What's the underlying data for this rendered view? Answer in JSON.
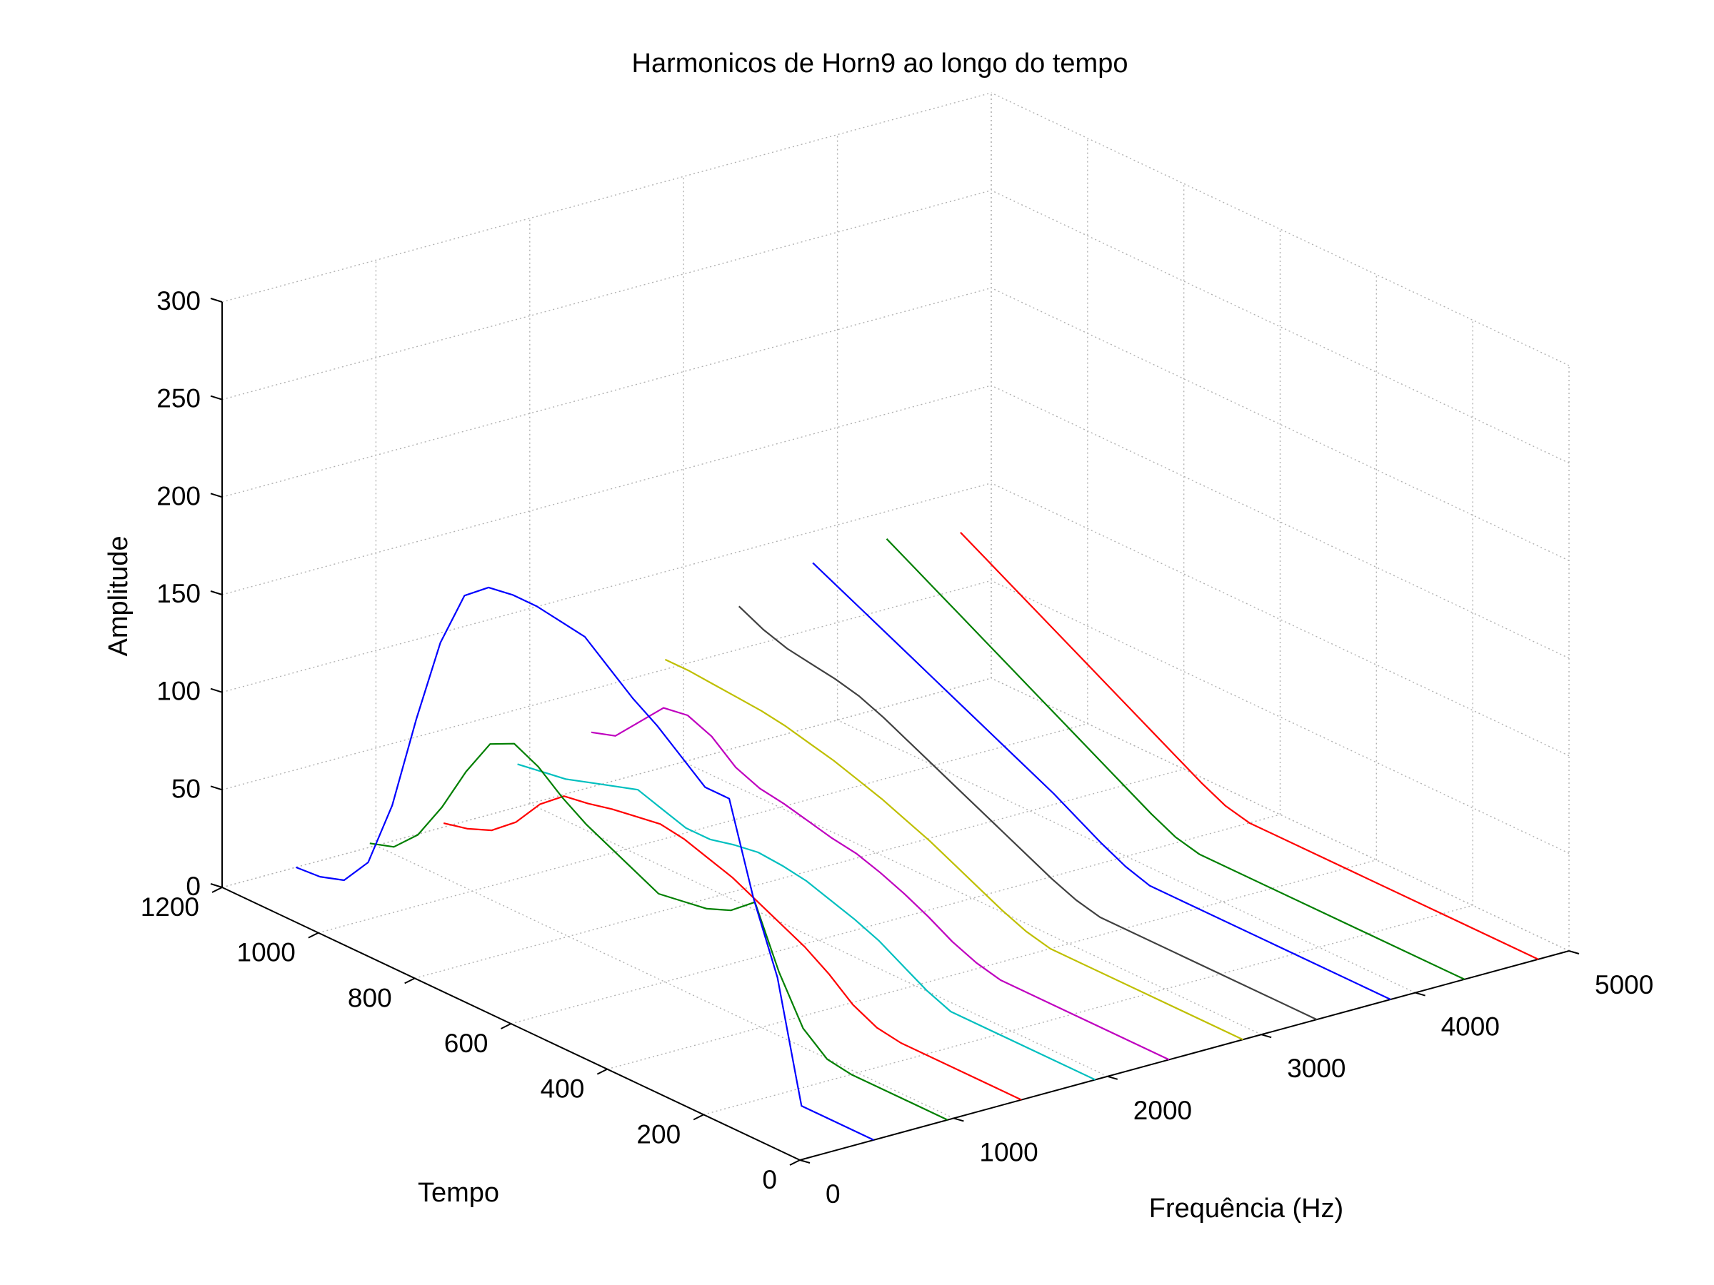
{
  "chart_data": {
    "type": "line",
    "projection": "3d",
    "title": "Harmonicos de Horn9 ao longo do tempo",
    "xlabel": "Frequência (Hz)",
    "ylabel": "Tempo",
    "zlabel": "Amplitude",
    "xlim": [
      0,
      5000
    ],
    "ylim": [
      0,
      1200
    ],
    "zlim": [
      0,
      300
    ],
    "x_ticks": [
      "0",
      "1000",
      "2000",
      "3000",
      "4000",
      "5000"
    ],
    "y_ticks": [
      "0",
      "200",
      "400",
      "600",
      "800",
      "1000",
      "1200"
    ],
    "z_ticks": [
      "0",
      "50",
      "100",
      "150",
      "200",
      "250",
      "300"
    ],
    "grid": true,
    "series": [
      {
        "color": "#0000ff",
        "frequency": 480,
        "time": [
          0,
          150,
          160,
          200,
          250,
          300,
          350,
          400,
          450,
          500,
          550,
          600,
          650,
          700,
          750,
          800,
          850,
          900,
          950,
          1000,
          1050,
          1100,
          1150,
          1200
        ],
        "amplitude": [
          0,
          0,
          12,
          60,
          95,
          140,
          140,
          150,
          160,
          168,
          178,
          188,
          190,
          192,
          192,
          190,
          180,
          150,
          105,
          55,
          20,
          5,
          1,
          0
        ]
      },
      {
        "color": "#007f00",
        "frequency": 960,
        "time": [
          0,
          200,
          250,
          300,
          350,
          400,
          450,
          500,
          550,
          600,
          650,
          700,
          750,
          800,
          850,
          900,
          950,
          1000,
          1050,
          1100,
          1150,
          1200
        ],
        "amplitude": [
          0,
          0,
          2,
          12,
          35,
          65,
          55,
          50,
          48,
          46,
          52,
          58,
          64,
          72,
          82,
          88,
          82,
          62,
          38,
          18,
          6,
          2
        ]
      },
      {
        "color": "#ff0000",
        "frequency": 1440,
        "time": [
          0,
          250,
          300,
          350,
          400,
          450,
          500,
          550,
          600,
          650,
          700,
          750,
          800,
          850,
          900,
          950,
          1000,
          1050,
          1100,
          1150,
          1200
        ],
        "amplitude": [
          0,
          0,
          2,
          8,
          18,
          26,
          32,
          38,
          44,
          48,
          52,
          54,
          52,
          50,
          47,
          45,
          35,
          20,
          10,
          5,
          2
        ]
      },
      {
        "color": "#00bfbf",
        "frequency": 1920,
        "time": [
          0,
          300,
          350,
          400,
          450,
          500,
          550,
          600,
          650,
          700,
          750,
          800,
          850,
          900,
          950,
          1000,
          1050,
          1100,
          1150,
          1200
        ],
        "amplitude": [
          0,
          0,
          5,
          12,
          19,
          24,
          28,
          32,
          34,
          35,
          33,
          30,
          30,
          34,
          38,
          34,
          30,
          26,
          24,
          22
        ]
      },
      {
        "color": "#bf00bf",
        "frequency": 2400,
        "time": [
          0,
          350,
          400,
          450,
          500,
          550,
          600,
          650,
          700,
          750,
          800,
          850,
          900,
          950,
          1000,
          1050,
          1100,
          1150,
          1200
        ],
        "amplitude": [
          0,
          0,
          3,
          8,
          15,
          21,
          26,
          30,
          32,
          35,
          38,
          40,
          45,
          55,
          60,
          58,
          45,
          32,
          28
        ]
      },
      {
        "color": "#bfbf00",
        "frequency": 2880,
        "time": [
          0,
          400,
          450,
          500,
          550,
          600,
          650,
          700,
          750,
          800,
          850,
          900,
          950,
          1000,
          1050,
          1100,
          1150,
          1200
        ],
        "amplitude": [
          0,
          0,
          3,
          8,
          14,
          20,
          26,
          31,
          36,
          40,
          44,
          47,
          50,
          52,
          53,
          54,
          55,
          55
        ]
      },
      {
        "color": "#404040",
        "frequency": 3360,
        "time": [
          0,
          450,
          500,
          550,
          600,
          650,
          700,
          750,
          800,
          850,
          900,
          950,
          1000,
          1050,
          1100,
          1150,
          1200
        ],
        "amplitude": [
          0,
          0,
          3,
          8,
          14,
          20,
          26,
          32,
          38,
          44,
          50,
          55,
          58,
          60,
          62,
          66,
          72
        ]
      },
      {
        "color": "#0000ff",
        "frequency": 3840,
        "time": [
          0,
          500,
          550,
          600,
          650,
          700,
          750,
          800,
          850,
          900,
          950,
          1000,
          1050,
          1100,
          1150,
          1200
        ],
        "amplitude": [
          0,
          0,
          4,
          10,
          17,
          24,
          30,
          36,
          42,
          48,
          54,
          60,
          66,
          72,
          78,
          84
        ]
      },
      {
        "color": "#007f00",
        "frequency": 4320,
        "time": [
          0,
          550,
          600,
          650,
          700,
          750,
          800,
          850,
          900,
          950,
          1000,
          1050,
          1100,
          1150,
          1200
        ],
        "amplitude": [
          0,
          0,
          3,
          9,
          16,
          23,
          30,
          37,
          44,
          51,
          58,
          65,
          72,
          79,
          86
        ]
      },
      {
        "color": "#ff0000",
        "frequency": 4800,
        "time": [
          0,
          600,
          650,
          700,
          750,
          800,
          850,
          900,
          950,
          1000,
          1050,
          1100,
          1150,
          1200
        ],
        "amplitude": [
          0,
          0,
          3,
          9,
          16,
          23,
          30,
          37,
          44,
          51,
          58,
          65,
          72,
          79
        ]
      }
    ]
  }
}
